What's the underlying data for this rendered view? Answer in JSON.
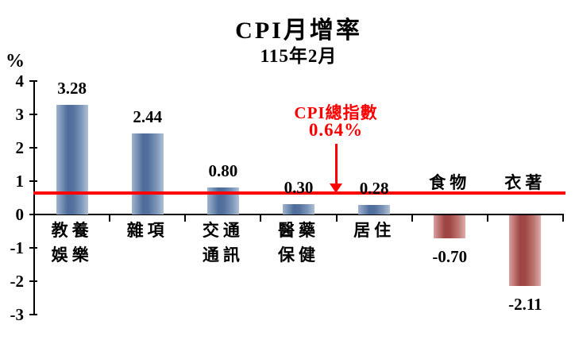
{
  "chart_data": {
    "type": "bar",
    "title": "CPI月增率",
    "subtitle": "115年2月",
    "ylabel": "%",
    "xlabel": "",
    "ylim": [
      -3,
      4
    ],
    "yticks": [
      4,
      3,
      2,
      1,
      0,
      -1,
      -2,
      -3
    ],
    "grid": false,
    "legend": false,
    "categories": [
      "教養娛樂",
      "雜項",
      "交通通訊",
      "醫藥保健",
      "居住",
      "食物",
      "衣著"
    ],
    "category_lines": [
      [
        "教養",
        "娛樂"
      ],
      [
        "雜項"
      ],
      [
        "交通",
        "通訊"
      ],
      [
        "醫藥",
        "保健"
      ],
      [
        "居住"
      ],
      [
        "食物"
      ],
      [
        "衣著"
      ]
    ],
    "values": [
      3.28,
      2.44,
      0.8,
      0.3,
      0.28,
      -0.7,
      -2.11
    ],
    "value_labels": [
      "3.28",
      "2.44",
      "0.80",
      "0.30",
      "0.28",
      "-0.70",
      "-2.11"
    ],
    "reference_line": {
      "title": "CPI總指數",
      "value_label": "0.64%",
      "value": 0.64,
      "color": "#fe0000"
    },
    "colors": {
      "positive_bar_mid": "#54719e",
      "positive_bar_edge": "#b0c1d6",
      "negative_bar_mid": "#9e4443",
      "negative_bar_edge": "#e0aeab",
      "axis": "#000000",
      "text": "#000000",
      "annotation": "#fe0000"
    }
  }
}
